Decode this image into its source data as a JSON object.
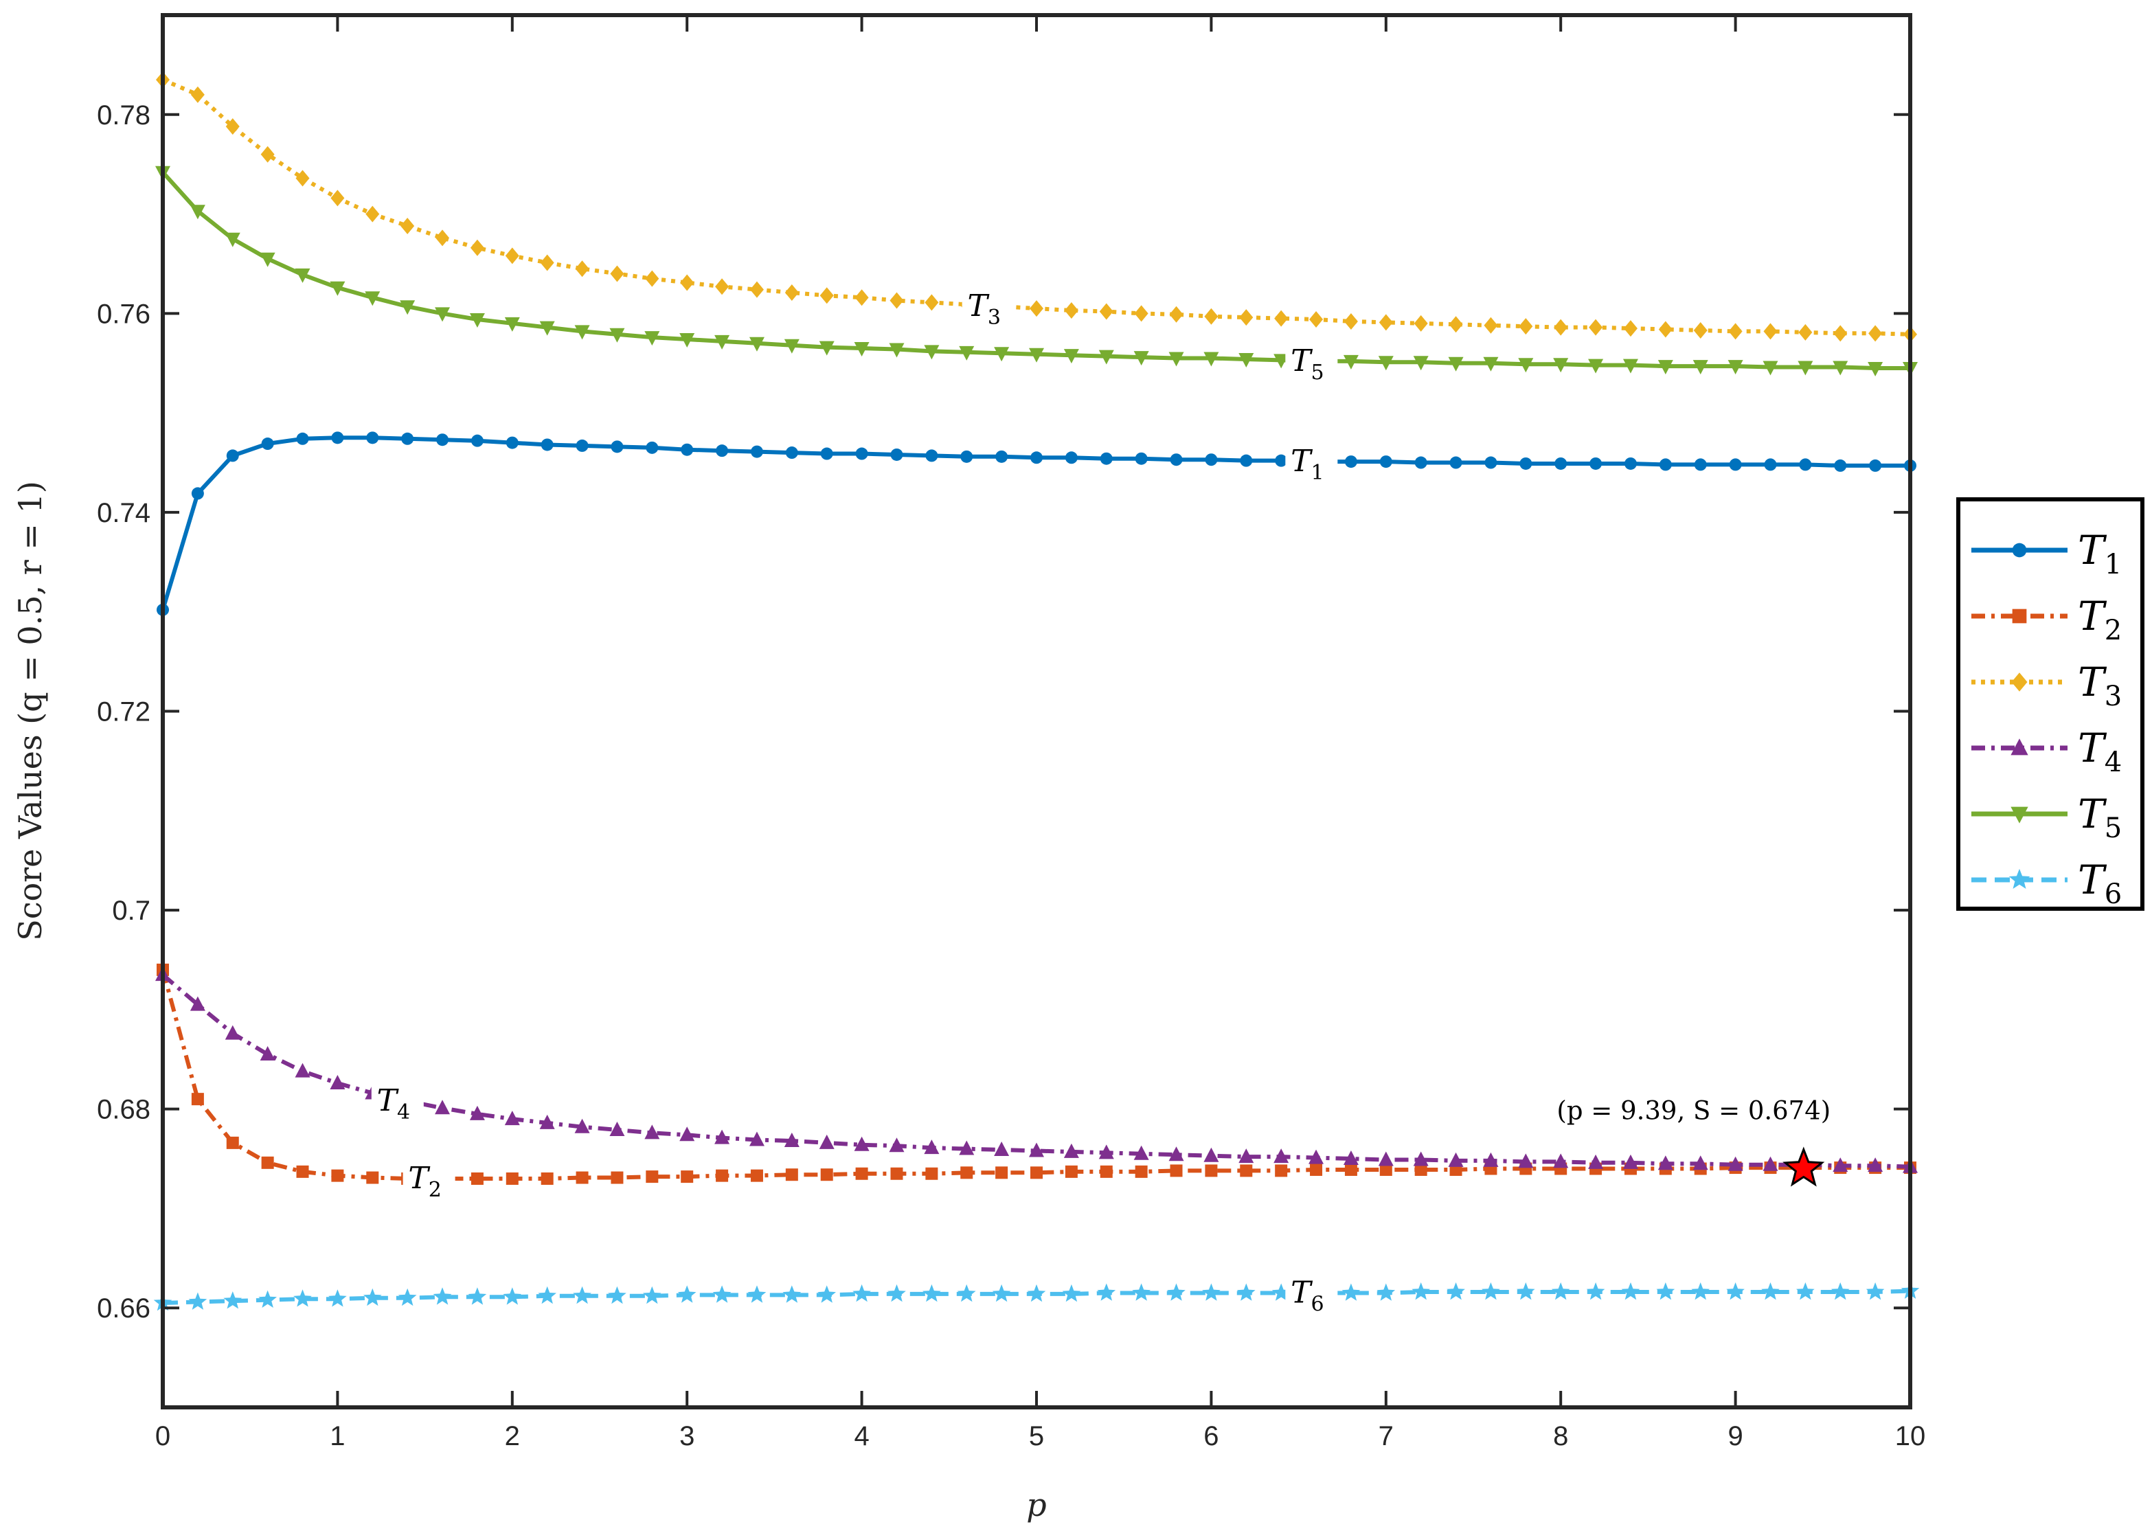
{
  "chart_data": {
    "type": "line",
    "title": "",
    "xlabel": "p",
    "ylabel": "Score Values (q = 0.5, r = 1)",
    "xlim": [
      0,
      10
    ],
    "ylim": [
      0.65,
      0.79
    ],
    "x_ticks": [
      "0",
      "1",
      "2",
      "3",
      "4",
      "5",
      "6",
      "7",
      "8",
      "9",
      "10"
    ],
    "y_ticks": [
      "0.66",
      "0.68",
      "0.7",
      "0.72",
      "0.74",
      "0.76",
      "0.78"
    ],
    "y_tick_values": [
      0.66,
      0.68,
      0.7,
      0.72,
      0.74,
      0.76,
      0.78
    ],
    "grid": false,
    "legend": "outside-right",
    "x": [
      0,
      0.2,
      0.4,
      0.6,
      0.8,
      1.0,
      1.2,
      1.4,
      1.6,
      1.8,
      2.0,
      2.2,
      2.4,
      2.6,
      2.8,
      3.0,
      3.2,
      3.4,
      3.6,
      3.8,
      4.0,
      4.2,
      4.4,
      4.6,
      4.8,
      5.0,
      5.2,
      5.4,
      5.6,
      5.8,
      6.0,
      6.2,
      6.4,
      6.6,
      6.8,
      7.0,
      7.2,
      7.4,
      7.6,
      7.8,
      8.0,
      8.2,
      8.4,
      8.6,
      8.8,
      9.0,
      9.2,
      9.4,
      9.6,
      9.8,
      10.0
    ],
    "series": [
      {
        "name": "T1",
        "sub": "1",
        "color": "#0072BD",
        "style": "solid",
        "marker": "circle",
        "label_x": 6.55,
        "values": [
          0.7302,
          0.7419,
          0.7457,
          0.7469,
          0.7474,
          0.7475,
          0.7475,
          0.7474,
          0.7473,
          0.7472,
          0.747,
          0.7468,
          0.7467,
          0.7466,
          0.7465,
          0.7463,
          0.7462,
          0.7461,
          0.746,
          0.7459,
          0.7459,
          0.7458,
          0.7457,
          0.7456,
          0.7456,
          0.7455,
          0.7455,
          0.7454,
          0.7454,
          0.7453,
          0.7453,
          0.7452,
          0.7452,
          0.7451,
          0.7451,
          0.7451,
          0.745,
          0.745,
          0.745,
          0.7449,
          0.7449,
          0.7449,
          0.7449,
          0.7448,
          0.7448,
          0.7448,
          0.7448,
          0.7448,
          0.7447,
          0.7447,
          0.7447
        ]
      },
      {
        "name": "T2",
        "sub": "2",
        "color": "#D95319",
        "style": "dashdot",
        "marker": "square",
        "label_x": 1.5,
        "values": [
          0.694,
          0.681,
          0.6766,
          0.6746,
          0.6737,
          0.6733,
          0.6731,
          0.673,
          0.673,
          0.673,
          0.673,
          0.673,
          0.6731,
          0.6731,
          0.6732,
          0.6732,
          0.6733,
          0.6733,
          0.6734,
          0.6734,
          0.6735,
          0.6735,
          0.6735,
          0.6736,
          0.6736,
          0.6736,
          0.6737,
          0.6737,
          0.6737,
          0.6738,
          0.6738,
          0.6738,
          0.6738,
          0.6739,
          0.6739,
          0.6739,
          0.6739,
          0.6739,
          0.674,
          0.674,
          0.674,
          0.674,
          0.674,
          0.674,
          0.674,
          0.6741,
          0.6741,
          0.6741,
          0.6741,
          0.6741,
          0.6741
        ]
      },
      {
        "name": "T3",
        "sub": "3",
        "color": "#EDB120",
        "style": "dotted",
        "marker": "diamond",
        "label_x": 4.7,
        "values": [
          0.7835,
          0.782,
          0.7788,
          0.776,
          0.7736,
          0.7716,
          0.77,
          0.7688,
          0.7676,
          0.7666,
          0.7658,
          0.7651,
          0.7645,
          0.764,
          0.7635,
          0.7631,
          0.7627,
          0.7624,
          0.7621,
          0.7618,
          0.7616,
          0.7613,
          0.7611,
          0.7609,
          0.7607,
          0.7605,
          0.7603,
          0.7602,
          0.76,
          0.7599,
          0.7597,
          0.7596,
          0.7595,
          0.7594,
          0.7592,
          0.7591,
          0.759,
          0.7589,
          0.7588,
          0.7587,
          0.7586,
          0.7586,
          0.7585,
          0.7584,
          0.7583,
          0.7582,
          0.7582,
          0.7581,
          0.758,
          0.758,
          0.7579
        ]
      },
      {
        "name": "T4",
        "sub": "4",
        "color": "#7E2F8E",
        "style": "dashdot",
        "marker": "triangle-up",
        "label_x": 1.32,
        "values": [
          0.6935,
          0.6905,
          0.6876,
          0.6855,
          0.6838,
          0.6826,
          0.6816,
          0.6808,
          0.6801,
          0.6795,
          0.679,
          0.6786,
          0.6782,
          0.6779,
          0.6776,
          0.6774,
          0.6771,
          0.6769,
          0.6768,
          0.6766,
          0.6764,
          0.6763,
          0.6761,
          0.676,
          0.6759,
          0.6758,
          0.6757,
          0.6756,
          0.6755,
          0.6754,
          0.6753,
          0.6752,
          0.6752,
          0.6751,
          0.675,
          0.6749,
          0.6749,
          0.6748,
          0.6748,
          0.6747,
          0.6747,
          0.6746,
          0.6746,
          0.6745,
          0.6745,
          0.6744,
          0.6744,
          0.6744,
          0.6743,
          0.6743,
          0.6742
        ]
      },
      {
        "name": "T5",
        "sub": "5",
        "color": "#77AC30",
        "style": "solid",
        "marker": "triangle-down",
        "label_x": 6.55,
        "values": [
          0.7742,
          0.7703,
          0.7675,
          0.7655,
          0.7639,
          0.7626,
          0.7616,
          0.7607,
          0.76,
          0.7594,
          0.759,
          0.7586,
          0.7582,
          0.7579,
          0.7576,
          0.7574,
          0.7572,
          0.757,
          0.7568,
          0.7566,
          0.7565,
          0.7564,
          0.7562,
          0.7561,
          0.756,
          0.7559,
          0.7558,
          0.7557,
          0.7556,
          0.7555,
          0.7555,
          0.7554,
          0.7553,
          0.7552,
          0.7552,
          0.7551,
          0.7551,
          0.755,
          0.755,
          0.7549,
          0.7549,
          0.7548,
          0.7548,
          0.7547,
          0.7547,
          0.7547,
          0.7546,
          0.7546,
          0.7546,
          0.7545,
          0.7545
        ]
      },
      {
        "name": "T6",
        "sub": "6",
        "color": "#4DBEEE",
        "style": "dashed",
        "marker": "star",
        "label_x": 6.55,
        "values": [
          0.6605,
          0.6606,
          0.6607,
          0.6608,
          0.6609,
          0.6609,
          0.661,
          0.661,
          0.6611,
          0.6611,
          0.6611,
          0.6612,
          0.6612,
          0.6612,
          0.6612,
          0.6613,
          0.6613,
          0.6613,
          0.6613,
          0.6613,
          0.6614,
          0.6614,
          0.6614,
          0.6614,
          0.6614,
          0.6614,
          0.6614,
          0.6615,
          0.6615,
          0.6615,
          0.6615,
          0.6615,
          0.6615,
          0.6615,
          0.6615,
          0.6615,
          0.6616,
          0.6616,
          0.6616,
          0.6616,
          0.6616,
          0.6616,
          0.6616,
          0.6616,
          0.6616,
          0.6616,
          0.6616,
          0.6616,
          0.6616,
          0.6616,
          0.6617
        ]
      }
    ],
    "annotation": {
      "text": "(p = 9.39, S = 0.674)",
      "x": 9.39,
      "y": 0.674,
      "marker_color": "#FF0000"
    }
  }
}
